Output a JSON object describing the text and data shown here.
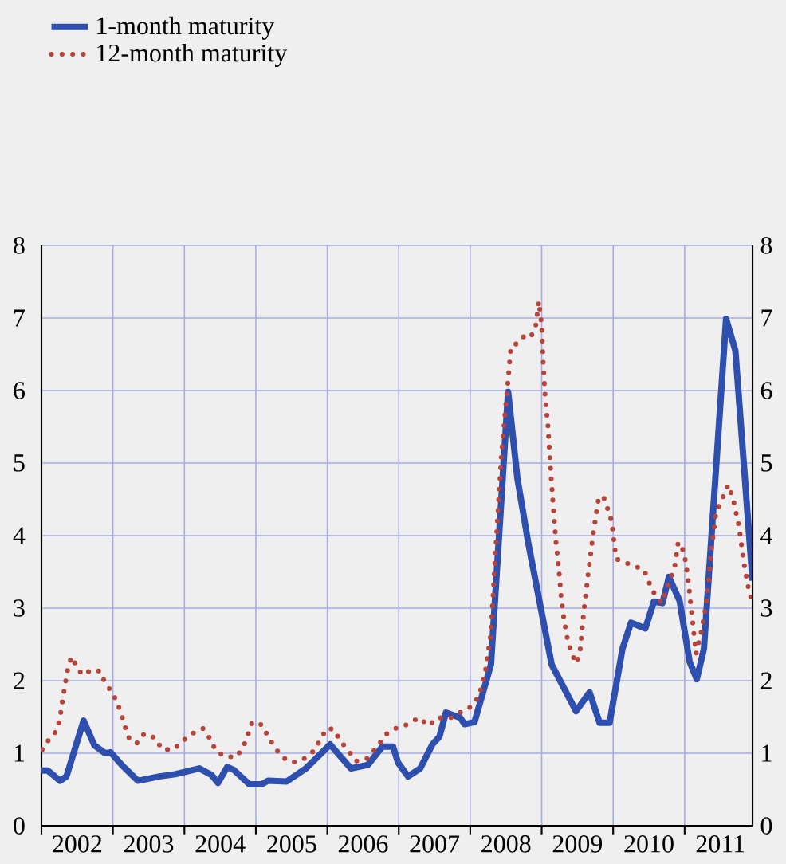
{
  "chart_data": {
    "type": "line",
    "xlim": [
      2002,
      2011.95
    ],
    "ylim": [
      0,
      8
    ],
    "yticks": [
      0,
      1,
      2,
      3,
      4,
      5,
      6,
      7,
      8
    ],
    "y2lim": [
      0,
      8
    ],
    "y2ticks": [
      0,
      1,
      2,
      3,
      4,
      5,
      6,
      7,
      8
    ],
    "xticks": [
      {
        "value": 2002,
        "label": null
      },
      {
        "value": 2003,
        "label": null
      },
      {
        "value": 2004,
        "label": null
      },
      {
        "value": 2005,
        "label": null
      },
      {
        "value": 2006,
        "label": null
      },
      {
        "value": 2007,
        "label": null
      },
      {
        "value": 2008,
        "label": null
      },
      {
        "value": 2009,
        "label": null
      },
      {
        "value": 2010,
        "label": null
      },
      {
        "value": 2011,
        "label": null
      },
      {
        "value": 2002.5,
        "label": "2002"
      },
      {
        "value": 2003.5,
        "label": "2003"
      },
      {
        "value": 2004.5,
        "label": "2004"
      },
      {
        "value": 2005.5,
        "label": "2005"
      },
      {
        "value": 2006.5,
        "label": "2006"
      },
      {
        "value": 2007.5,
        "label": "2007"
      },
      {
        "value": 2008.5,
        "label": "2008"
      },
      {
        "value": 2009.5,
        "label": "2009"
      },
      {
        "value": 2010.5,
        "label": "2010"
      },
      {
        "value": 2011.5,
        "label": "2011"
      }
    ],
    "grid": true,
    "legend": "top left",
    "marker": "none",
    "series": [
      {
        "name": "1-month maturity",
        "color": "#2e4fae",
        "line_style": "solid",
        "x": [
          2002.0,
          2002.09,
          2002.26,
          2002.35,
          2002.59,
          2002.74,
          2002.89,
          2002.97,
          2003.13,
          2003.35,
          2003.65,
          2003.87,
          2004.21,
          2004.38,
          2004.47,
          2004.6,
          2004.69,
          2004.91,
          2005.08,
          2005.17,
          2005.43,
          2005.7,
          2006.04,
          2006.33,
          2006.57,
          2006.77,
          2006.92,
          2006.99,
          2007.13,
          2007.3,
          2007.47,
          2007.57,
          2007.66,
          2007.86,
          2007.92,
          2008.06,
          2008.29,
          2008.53,
          2008.66,
          2008.81,
          2009.14,
          2009.48,
          2009.67,
          2009.81,
          2009.95,
          2010.13,
          2010.25,
          2010.45,
          2010.57,
          2010.69,
          2010.78,
          2010.93,
          2011.07,
          2011.17,
          2011.27,
          2011.58,
          2011.71,
          2011.95
        ],
        "values": [
          0.76,
          0.76,
          0.62,
          0.68,
          1.45,
          1.11,
          1.0,
          1.01,
          0.83,
          0.62,
          0.68,
          0.71,
          0.79,
          0.7,
          0.59,
          0.81,
          0.77,
          0.57,
          0.57,
          0.62,
          0.61,
          0.79,
          1.12,
          0.79,
          0.84,
          1.09,
          1.09,
          0.87,
          0.68,
          0.79,
          1.12,
          1.23,
          1.56,
          1.49,
          1.4,
          1.43,
          2.22,
          5.98,
          4.79,
          3.91,
          2.22,
          1.58,
          1.84,
          1.42,
          1.42,
          2.44,
          2.8,
          2.72,
          3.09,
          3.07,
          3.43,
          3.1,
          2.26,
          2.02,
          2.44,
          6.99,
          6.55,
          3.38
        ]
      },
      {
        "name": "12-month maturity",
        "color": "#b8433a",
        "line_style": "dotted",
        "x": [
          2002.01,
          2002.1,
          2002.21,
          2002.26,
          2002.28,
          2002.31,
          2002.34,
          2002.37,
          2002.42,
          2002.48,
          2002.57,
          2002.71,
          2002.82,
          2002.89,
          2003.0,
          2003.07,
          2003.13,
          2003.18,
          2003.24,
          2003.34,
          2003.44,
          2003.59,
          2003.69,
          2003.85,
          2003.99,
          2004.13,
          2004.26,
          2004.36,
          2004.44,
          2004.58,
          2004.73,
          2004.83,
          2004.89,
          2004.95,
          2005.09,
          2005.17,
          2005.26,
          2005.36,
          2005.51,
          2005.67,
          2005.81,
          2005.9,
          2005.99,
          2006.09,
          2006.18,
          2006.3,
          2006.4,
          2006.55,
          2006.7,
          2006.82,
          2006.95,
          2007.1,
          2007.21,
          2007.28,
          2007.42,
          2007.54,
          2007.71,
          2007.86,
          2008.01,
          2008.12,
          2008.21,
          2008.29,
          2008.34,
          2008.39,
          2008.44,
          2008.5,
          2008.53,
          2008.57,
          2008.68,
          2008.76,
          2008.85,
          2008.92,
          2008.96,
          2009.0,
          2009.02,
          2009.05,
          2009.09,
          2009.12,
          2009.16,
          2009.2,
          2009.24,
          2009.27,
          2009.31,
          2009.37,
          2009.44,
          2009.49,
          2009.54,
          2009.59,
          2009.65,
          2009.72,
          2009.8,
          2009.87,
          2009.93,
          2009.98,
          2010.04,
          2010.19,
          2010.43,
          2010.55,
          2010.68,
          2010.86,
          2010.91,
          2010.99,
          2011.04,
          2011.1,
          2011.16,
          2011.23,
          2011.31,
          2011.37,
          2011.44,
          2011.54,
          2011.61,
          2011.68,
          2011.76,
          2011.83,
          2011.89,
          2011.94
        ],
        "values": [
          1.05,
          1.18,
          1.31,
          1.48,
          1.64,
          1.82,
          2.0,
          2.17,
          2.33,
          2.22,
          2.08,
          2.15,
          2.13,
          1.97,
          1.82,
          1.67,
          1.5,
          1.33,
          1.17,
          1.14,
          1.27,
          1.21,
          1.05,
          1.05,
          1.18,
          1.28,
          1.34,
          1.2,
          1.03,
          0.95,
          0.95,
          1.1,
          1.26,
          1.43,
          1.39,
          1.23,
          1.09,
          0.95,
          0.87,
          0.92,
          1.03,
          1.18,
          1.34,
          1.33,
          1.17,
          1.03,
          0.89,
          0.92,
          1.09,
          1.26,
          1.34,
          1.39,
          1.45,
          1.49,
          1.38,
          1.49,
          1.48,
          1.56,
          1.64,
          1.78,
          2.11,
          2.66,
          3.54,
          4.35,
          5.16,
          5.82,
          6.15,
          6.61,
          6.66,
          6.76,
          6.74,
          6.91,
          7.23,
          6.9,
          6.41,
          5.89,
          5.49,
          4.98,
          4.43,
          3.91,
          3.54,
          3.18,
          2.85,
          2.52,
          2.33,
          2.24,
          2.44,
          2.96,
          3.47,
          4.02,
          4.54,
          4.52,
          4.35,
          4.19,
          3.68,
          3.62,
          3.53,
          3.24,
          3.07,
          3.56,
          3.91,
          3.78,
          3.47,
          2.92,
          2.37,
          2.66,
          3.1,
          3.77,
          4.32,
          4.54,
          4.7,
          4.5,
          4.13,
          3.62,
          3.29,
          3.1
        ]
      }
    ]
  }
}
